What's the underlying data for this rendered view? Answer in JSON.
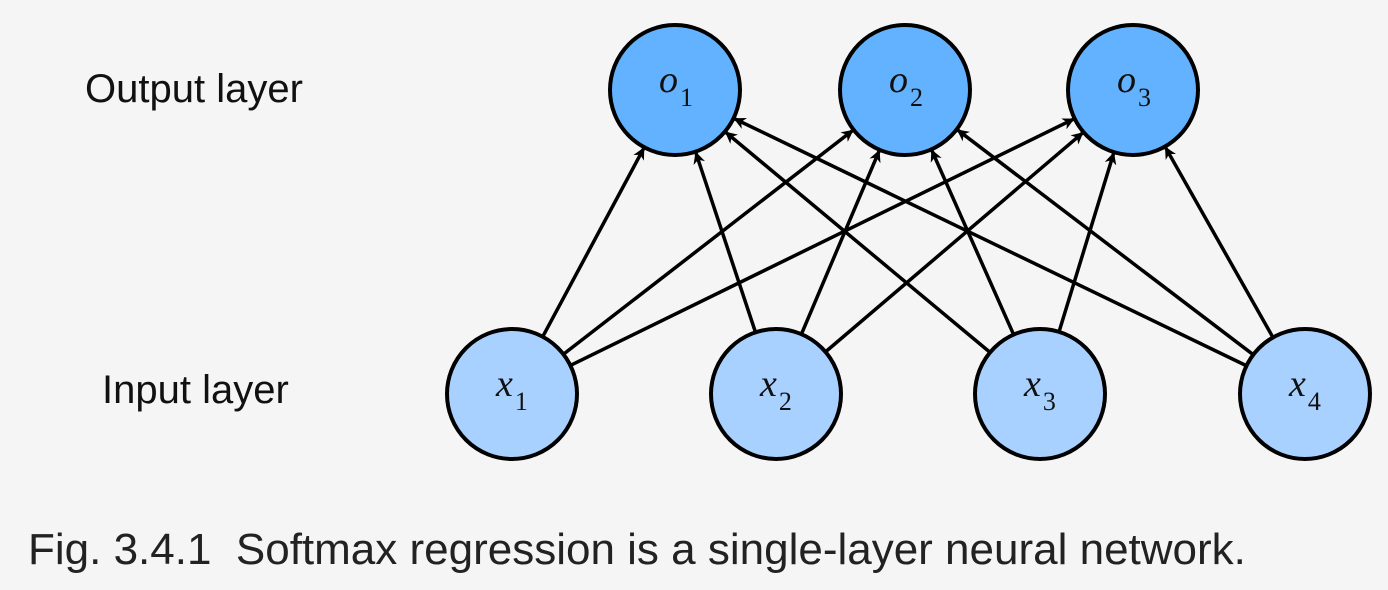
{
  "labels": {
    "output_layer": "Output layer",
    "input_layer": "Input layer"
  },
  "nodes": {
    "inputs": [
      {
        "letter": "x",
        "sub": "1"
      },
      {
        "letter": "x",
        "sub": "2"
      },
      {
        "letter": "x",
        "sub": "3"
      },
      {
        "letter": "x",
        "sub": "4"
      }
    ],
    "outputs": [
      {
        "letter": "o",
        "sub": "1"
      },
      {
        "letter": "o",
        "sub": "2"
      },
      {
        "letter": "o",
        "sub": "3"
      }
    ]
  },
  "edges": "fully-connected",
  "colors": {
    "output_fill": "#62b2ff",
    "input_fill": "#a9d1ff",
    "stroke": "#000000"
  },
  "caption": "Fig. 3.4.1  Softmax regression is a single-layer neural network."
}
